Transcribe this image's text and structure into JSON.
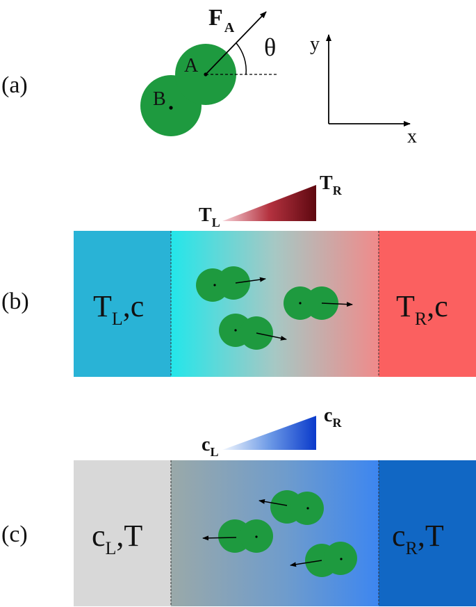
{
  "panels": {
    "a": {
      "label": "(a)",
      "force_label": "F",
      "force_sub": "A",
      "angle_label": "θ",
      "bead_a": "A",
      "bead_b": "B",
      "axis_y": "y",
      "axis_x": "x"
    },
    "b": {
      "label": "(b)",
      "gradient_left": "T",
      "gradient_left_sub": "L",
      "gradient_right": "T",
      "gradient_right_sub": "R",
      "left_reservoir_main": "T",
      "left_reservoir_sub": "L",
      "left_reservoir_rest": ",c",
      "right_reservoir_main": "T",
      "right_reservoir_sub": "R",
      "right_reservoir_rest": ",c"
    },
    "c": {
      "label": "(c)",
      "gradient_left": "c",
      "gradient_left_sub": "L",
      "gradient_right": "c",
      "gradient_right_sub": "R",
      "left_reservoir_main": "c",
      "left_reservoir_sub": "L",
      "left_reservoir_rest": ",T",
      "right_reservoir_main": "c",
      "right_reservoir_sub": "R",
      "right_reservoir_rest": ",T"
    }
  },
  "colors": {
    "bead": "#1e9a3f",
    "b_left": "#29b3d6",
    "b_mid_start": "#23e6ea",
    "b_mid_end": "#f08a8a",
    "b_right": "#fb6060",
    "c_left": "#d8d8d8",
    "c_mid_start": "#9aa9a9",
    "c_mid_end": "#3d86f0",
    "c_right": "#1167c4",
    "t_wedge_start": "#f2b6c0",
    "t_wedge_end": "#6b0a12",
    "c_wedge_start": "#e8f2fb",
    "c_wedge_end": "#0b3fcf"
  }
}
